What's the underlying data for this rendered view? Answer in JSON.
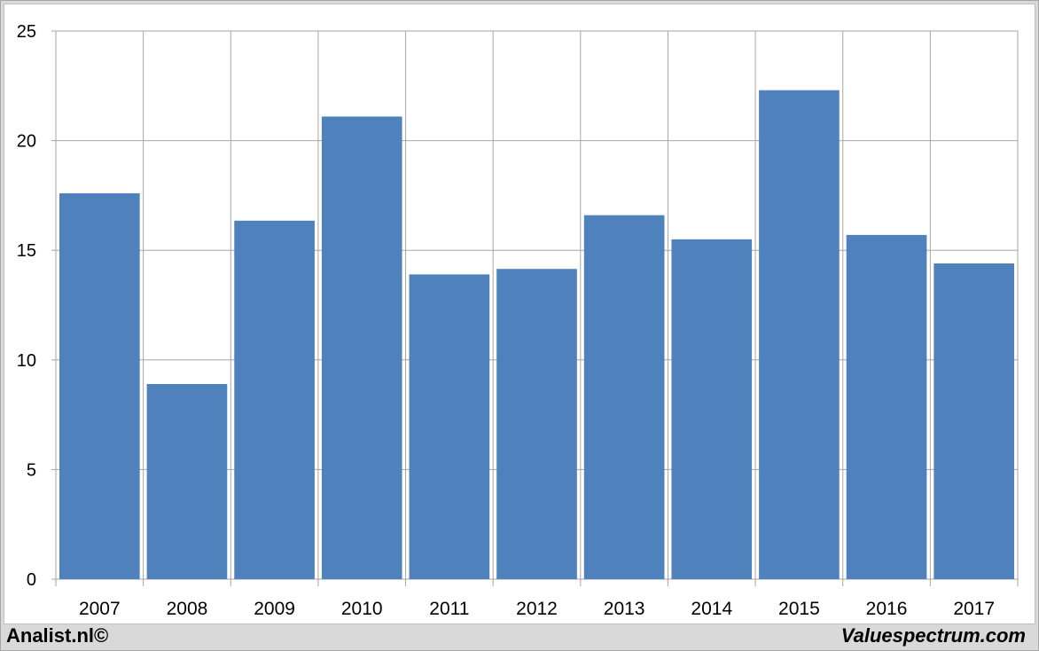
{
  "footer": {
    "left_text": "Analist.nl©",
    "right_text": "Valuespectrum.com"
  },
  "colors": {
    "bar": "#4f81bd",
    "grid": "#a6a6a6",
    "background": "#ffffff",
    "frame": "#d9d9d9"
  },
  "chart_data": {
    "type": "bar",
    "title": "",
    "xlabel": "",
    "ylabel": "",
    "categories": [
      "2007",
      "2008",
      "2009",
      "2010",
      "2011",
      "2012",
      "2013",
      "2014",
      "2015",
      "2016",
      "2017"
    ],
    "values": [
      17.6,
      8.9,
      16.35,
      21.1,
      13.9,
      14.15,
      16.6,
      15.5,
      22.3,
      15.7,
      14.4
    ],
    "ylim": [
      0,
      25
    ],
    "yticks": [
      "0",
      "5",
      "10",
      "15",
      "20",
      "25"
    ],
    "grid": true,
    "legend": "none"
  }
}
